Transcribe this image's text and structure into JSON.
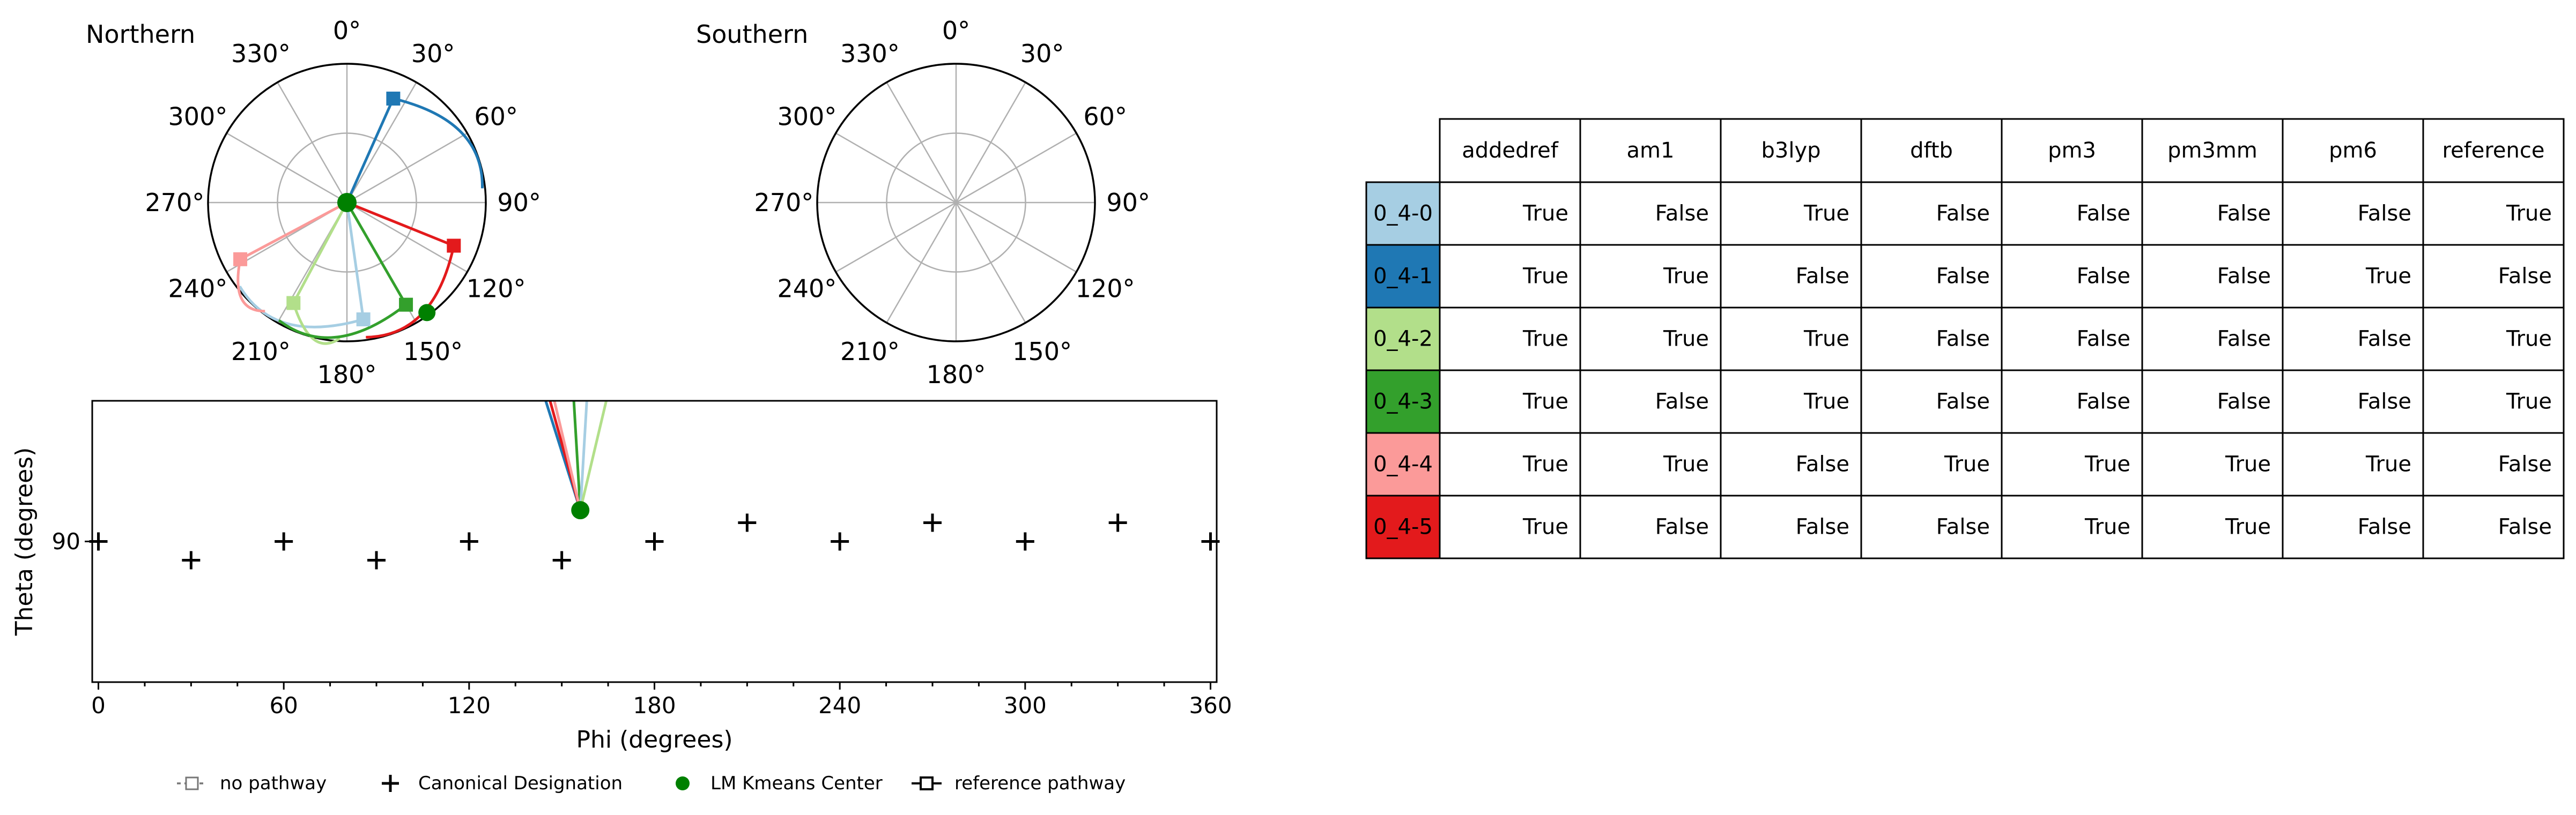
{
  "chart_data": [
    {
      "type": "polar",
      "title": "Northern",
      "angle_ticks": [
        "0°",
        "30°",
        "60°",
        "90°",
        "120°",
        "150°",
        "180°",
        "210°",
        "240°",
        "270°",
        "300°",
        "330°"
      ],
      "center_marker": {
        "name": "LM Kmeans Center",
        "color": "#008000"
      },
      "series": [
        {
          "name": "0_4-0",
          "color": "#a6cee3",
          "endpoint": {
            "phi": 172,
            "r": 0.85
          }
        },
        {
          "name": "0_4-1",
          "color": "#1f78b4",
          "endpoint": {
            "phi": 24,
            "r": 0.82
          }
        },
        {
          "name": "0_4-2",
          "color": "#b2df8a",
          "endpoint": {
            "phi": 208,
            "r": 0.82
          }
        },
        {
          "name": "0_4-3",
          "color": "#33a02c",
          "endpoint": {
            "phi": 150,
            "r": 0.85
          }
        },
        {
          "name": "0_4-4",
          "color": "#fb9a99",
          "endpoint": {
            "phi": 242,
            "r": 0.87
          }
        },
        {
          "name": "0_4-5",
          "color": "#e31a1c",
          "endpoint": {
            "phi": 112,
            "r": 0.83
          }
        }
      ],
      "extra_marker": {
        "phi": 144,
        "r": 1.0,
        "color": "#008000"
      }
    },
    {
      "type": "polar",
      "title": "Southern",
      "angle_ticks": [
        "0°",
        "30°",
        "60°",
        "90°",
        "120°",
        "150°",
        "180°",
        "210°",
        "240°",
        "270°",
        "300°",
        "330°"
      ],
      "series": []
    },
    {
      "type": "scatter",
      "xlabel": "Phi (degrees)",
      "ylabel": "Theta (degrees)",
      "xlim": [
        -2,
        362
      ],
      "ylim": [
        45,
        135
      ],
      "x_ticks": [
        0,
        60,
        120,
        180,
        240,
        300,
        360
      ],
      "y_ticks": [
        90
      ],
      "canonical_designation": {
        "name": "Canonical Designation",
        "points": [
          [
            0,
            90
          ],
          [
            30,
            84
          ],
          [
            60,
            90
          ],
          [
            90,
            84
          ],
          [
            120,
            90
          ],
          [
            150,
            84
          ],
          [
            180,
            90
          ],
          [
            210,
            96
          ],
          [
            240,
            90
          ],
          [
            270,
            96
          ],
          [
            300,
            90
          ],
          [
            330,
            96
          ],
          [
            360,
            90
          ]
        ]
      },
      "kmeans_center": {
        "name": "LM Kmeans Center",
        "phi": 156,
        "theta": 100,
        "color": "#008000"
      },
      "pathway_lines": [
        {
          "color": "#1f78b4",
          "to_phi": 140
        },
        {
          "color": "#e31a1c",
          "to_phi": 142
        },
        {
          "color": "#33a02c",
          "to_phi": 153
        },
        {
          "color": "#a6cee3",
          "to_phi": 159
        },
        {
          "color": "#b2df8a",
          "to_phi": 168
        },
        {
          "color": "#fb9a99",
          "to_phi": 144
        }
      ],
      "legend": [
        {
          "name": "no pathway",
          "marker": "dashed-square"
        },
        {
          "name": "Canonical Designation",
          "marker": "plus"
        },
        {
          "name": "LM Kmeans Center",
          "marker": "green-dot"
        },
        {
          "name": "reference pathway",
          "marker": "solid-square"
        }
      ]
    },
    {
      "type": "table",
      "columns": [
        "addedref",
        "am1",
        "b3lyp",
        "dftb",
        "pm3",
        "pm3mm",
        "pm6",
        "reference"
      ],
      "rows": [
        {
          "label": "0_4-0",
          "color": "#a6cee3",
          "values": [
            "True",
            "False",
            "True",
            "False",
            "False",
            "False",
            "False",
            "True"
          ]
        },
        {
          "label": "0_4-1",
          "color": "#1f78b4",
          "values": [
            "True",
            "True",
            "False",
            "False",
            "False",
            "False",
            "True",
            "False"
          ]
        },
        {
          "label": "0_4-2",
          "color": "#b2df8a",
          "values": [
            "True",
            "True",
            "True",
            "False",
            "False",
            "False",
            "False",
            "True"
          ]
        },
        {
          "label": "0_4-3",
          "color": "#33a02c",
          "values": [
            "True",
            "False",
            "True",
            "False",
            "False",
            "False",
            "False",
            "True"
          ]
        },
        {
          "label": "0_4-4",
          "color": "#fb9a99",
          "values": [
            "True",
            "True",
            "False",
            "True",
            "True",
            "True",
            "True",
            "False"
          ]
        },
        {
          "label": "0_4-5",
          "color": "#e31a1c",
          "values": [
            "True",
            "False",
            "False",
            "False",
            "True",
            "True",
            "False",
            "False"
          ]
        }
      ]
    }
  ]
}
